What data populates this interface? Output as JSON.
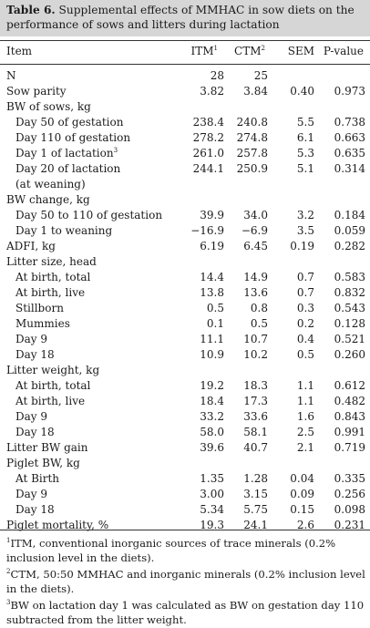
{
  "caption": {
    "label": "Table 6.",
    "text": "Supplemental effects of MMHAC in sow diets on the performance of sows and litters during lactation"
  },
  "header": {
    "item": "Item",
    "col1": "ITM",
    "col1_sup": "1",
    "col2": "CTM",
    "col2_sup": "2",
    "col3": "SEM",
    "col4": "P-value"
  },
  "rows": [
    {
      "label": "N",
      "c1": "28",
      "c2": "25",
      "c3": "",
      "c4": "",
      "indent": false
    },
    {
      "label": "Sow parity",
      "c1": "3.82",
      "c2": "3.84",
      "c3": "0.40",
      "c4": "0.973",
      "indent": false
    },
    {
      "label": "BW of sows, kg",
      "c1": "",
      "c2": "",
      "c3": "",
      "c4": "",
      "indent": false
    },
    {
      "label": "Day 50 of gestation",
      "c1": "238.4",
      "c2": "240.8",
      "c3": "5.5",
      "c4": "0.738",
      "indent": true
    },
    {
      "label": "Day 110 of gestation",
      "c1": "278.2",
      "c2": "274.8",
      "c3": "6.1",
      "c4": "0.663",
      "indent": true
    },
    {
      "label": "Day 1 of lactation",
      "sup": "3",
      "c1": "261.0",
      "c2": "257.8",
      "c3": "5.3",
      "c4": "0.635",
      "indent": true
    },
    {
      "label": "Day 20 of lactation",
      "c1": "244.1",
      "c2": "250.9",
      "c3": "5.1",
      "c4": "0.314",
      "indent": true
    },
    {
      "label": "(at weaning)",
      "c1": "",
      "c2": "",
      "c3": "",
      "c4": "",
      "indent": true
    },
    {
      "label": "BW change, kg",
      "c1": "",
      "c2": "",
      "c3": "",
      "c4": "",
      "indent": false
    },
    {
      "label": "Day 50 to 110 of gestation",
      "c1": "39.9",
      "c2": "34.0",
      "c3": "3.2",
      "c4": "0.184",
      "indent": true
    },
    {
      "label": "Day 1 to weaning",
      "c1": "−16.9",
      "c2": "−6.9",
      "c3": "3.5",
      "c4": "0.059",
      "indent": true
    },
    {
      "label": "ADFI, kg",
      "c1": "6.19",
      "c2": "6.45",
      "c3": "0.19",
      "c4": "0.282",
      "indent": false
    },
    {
      "label": "Litter size, head",
      "c1": "",
      "c2": "",
      "c3": "",
      "c4": "",
      "indent": false
    },
    {
      "label": "At birth, total",
      "c1": "14.4",
      "c2": "14.9",
      "c3": "0.7",
      "c4": "0.583",
      "indent": true
    },
    {
      "label": "At birth, live",
      "c1": "13.8",
      "c2": "13.6",
      "c3": "0.7",
      "c4": "0.832",
      "indent": true
    },
    {
      "label": "Stillborn",
      "c1": "0.5",
      "c2": "0.8",
      "c3": "0.3",
      "c4": "0.543",
      "indent": true
    },
    {
      "label": "Mummies",
      "c1": "0.1",
      "c2": "0.5",
      "c3": "0.2",
      "c4": "0.128",
      "indent": true
    },
    {
      "label": "Day 9",
      "c1": "11.1",
      "c2": "10.7",
      "c3": "0.4",
      "c4": "0.521",
      "indent": true
    },
    {
      "label": "Day 18",
      "c1": "10.9",
      "c2": "10.2",
      "c3": "0.5",
      "c4": "0.260",
      "indent": true
    },
    {
      "label": "Litter weight, kg",
      "c1": "",
      "c2": "",
      "c3": "",
      "c4": "",
      "indent": false
    },
    {
      "label": "At birth, total",
      "c1": "19.2",
      "c2": "18.3",
      "c3": "1.1",
      "c4": "0.612",
      "indent": true
    },
    {
      "label": "At birth, live",
      "c1": "18.4",
      "c2": "17.3",
      "c3": "1.1",
      "c4": "0.482",
      "indent": true
    },
    {
      "label": "Day 9",
      "c1": "33.2",
      "c2": "33.6",
      "c3": "1.6",
      "c4": "0.843",
      "indent": true
    },
    {
      "label": "Day 18",
      "c1": "58.0",
      "c2": "58.1",
      "c3": "2.5",
      "c4": "0.991",
      "indent": true
    },
    {
      "label": "Litter BW gain",
      "c1": "39.6",
      "c2": "40.7",
      "c3": "2.1",
      "c4": "0.719",
      "indent": false
    },
    {
      "label": "Piglet BW, kg",
      "c1": "",
      "c2": "",
      "c3": "",
      "c4": "",
      "indent": false
    },
    {
      "label": "At Birth",
      "c1": "1.35",
      "c2": "1.28",
      "c3": "0.04",
      "c4": "0.335",
      "indent": true
    },
    {
      "label": "Day 9",
      "c1": "3.00",
      "c2": "3.15",
      "c3": "0.09",
      "c4": "0.256",
      "indent": true
    },
    {
      "label": "Day 18",
      "c1": "5.34",
      "c2": "5.75",
      "c3": "0.15",
      "c4": "0.098",
      "indent": true
    },
    {
      "label": "Piglet mortality, %",
      "c1": "19.3",
      "c2": "24.1",
      "c3": "2.6",
      "c4": "0.231",
      "indent": false
    }
  ],
  "footnotes": [
    {
      "mark": "1",
      "text": "ITM, conventional inorganic sources of trace minerals (0.2% inclusion level in the diets)."
    },
    {
      "mark": "2",
      "text": "CTM, 50:50 MMHAC and inorganic minerals (0.2% inclusion level in the diets)."
    },
    {
      "mark": "3",
      "text": "BW on lactation day 1 was calculated as BW on gestation day 110 subtracted from the litter weight."
    }
  ]
}
